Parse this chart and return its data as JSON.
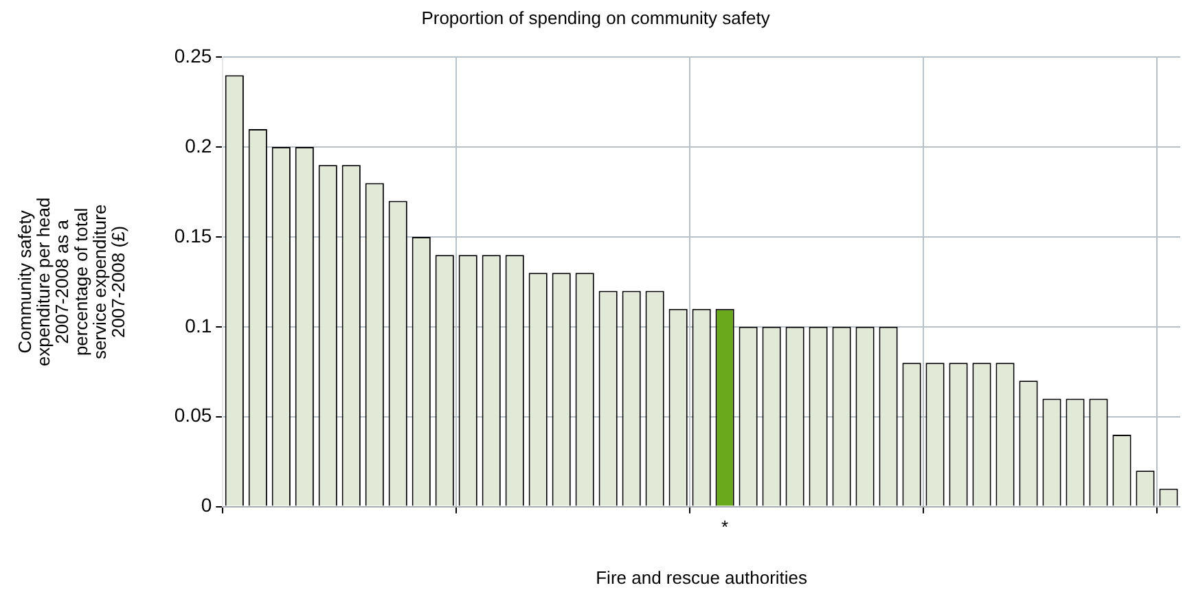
{
  "chart_data": {
    "type": "bar",
    "title": "Proportion of spending on community safety",
    "xlabel": "Fire and rescue authorities",
    "ylabel": "Community safety\nexpenditure per head\n2007-2008 as a\npercentage of total\nservice expenditure\n2007-2008 (£)",
    "categories": [
      null,
      null,
      null,
      null,
      null,
      null,
      null,
      null,
      null,
      null,
      null,
      null,
      null,
      null,
      null,
      null,
      null,
      null,
      null,
      null,
      null,
      "*",
      null,
      null,
      null,
      null,
      null,
      null,
      null,
      null,
      null,
      null,
      null,
      null,
      null,
      null,
      null,
      null,
      null,
      null,
      null
    ],
    "values": [
      0.24,
      0.21,
      0.2,
      0.2,
      0.19,
      0.19,
      0.18,
      0.17,
      0.15,
      0.14,
      0.14,
      0.14,
      0.14,
      0.13,
      0.13,
      0.13,
      0.12,
      0.12,
      0.12,
      0.11,
      0.11,
      0.11,
      0.1,
      0.1,
      0.1,
      0.1,
      0.1,
      0.1,
      0.1,
      0.08,
      0.08,
      0.08,
      0.08,
      0.08,
      0.07,
      0.06,
      0.06,
      0.06,
      0.04,
      0.02,
      0.01
    ],
    "colors": [
      "#e2e9d6",
      "#e2e9d6",
      "#e2e9d6",
      "#e2e9d6",
      "#e2e9d6",
      "#e2e9d6",
      "#e2e9d6",
      "#e2e9d6",
      "#e2e9d6",
      "#e2e9d6",
      "#e2e9d6",
      "#e2e9d6",
      "#e2e9d6",
      "#e2e9d6",
      "#e2e9d6",
      "#e2e9d6",
      "#e2e9d6",
      "#e2e9d6",
      "#e2e9d6",
      "#e2e9d6",
      "#e2e9d6",
      "#6aa81c",
      "#e2e9d6",
      "#e2e9d6",
      "#e2e9d6",
      "#e2e9d6",
      "#e2e9d6",
      "#e2e9d6",
      "#e2e9d6",
      "#e2e9d6",
      "#e2e9d6",
      "#e2e9d6",
      "#e2e9d6",
      "#e2e9d6",
      "#e2e9d6",
      "#e2e9d6",
      "#e2e9d6",
      "#e2e9d6",
      "#e2e9d6",
      "#e2e9d6",
      "#e2e9d6"
    ],
    "ylim": [
      0,
      0.25
    ],
    "yticks": [
      0,
      0.05,
      0.1,
      0.15,
      0.2,
      0.25
    ],
    "grid": true
  }
}
